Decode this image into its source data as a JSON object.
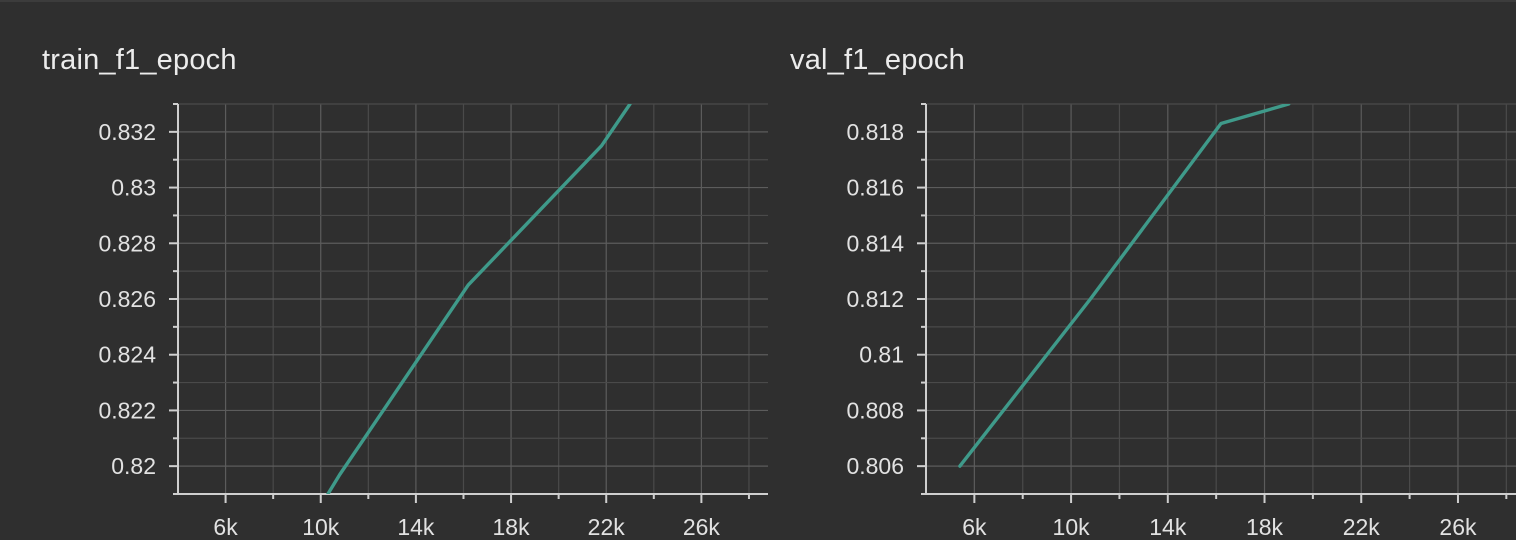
{
  "chart_data": [
    {
      "type": "line",
      "title": "train_f1_epoch",
      "xlabel": "",
      "ylabel": "",
      "xlim": [
        4000,
        28800
      ],
      "ylim": [
        0.819,
        0.833
      ],
      "x_ticks": [
        6000,
        10000,
        14000,
        18000,
        22000,
        26000
      ],
      "x_tick_labels": [
        "6k",
        "10k",
        "14k",
        "18k",
        "22k",
        "26k"
      ],
      "y_ticks": [
        0.82,
        0.822,
        0.824,
        0.826,
        0.828,
        0.83,
        0.832
      ],
      "y_tick_labels": [
        "0.82",
        "0.822",
        "0.824",
        "0.826",
        "0.828",
        "0.83",
        "0.832"
      ],
      "grid": true,
      "series": [
        {
          "color": "#3f9a8a",
          "x": [
            10300,
            10800,
            16200,
            21800,
            23000
          ],
          "y": [
            0.819,
            0.8197,
            0.8265,
            0.8315,
            0.833
          ]
        }
      ]
    },
    {
      "type": "line",
      "title": "val_f1_epoch",
      "xlabel": "",
      "ylabel": "",
      "xlim": [
        4000,
        28400
      ],
      "ylim": [
        0.805,
        0.819
      ],
      "x_ticks": [
        6000,
        10000,
        14000,
        18000,
        22000,
        26000
      ],
      "x_tick_labels": [
        "6k",
        "10k",
        "14k",
        "18k",
        "22k",
        "26k"
      ],
      "y_ticks": [
        0.806,
        0.808,
        0.81,
        0.812,
        0.814,
        0.816,
        0.818
      ],
      "y_tick_labels": [
        "0.806",
        "0.808",
        "0.81",
        "0.812",
        "0.814",
        "0.816",
        "0.818"
      ],
      "grid": true,
      "series": [
        {
          "color": "#3f9a8a",
          "x": [
            5400,
            10800,
            16200,
            19000
          ],
          "y": [
            0.806,
            0.812,
            0.8183,
            0.819
          ]
        }
      ]
    }
  ]
}
